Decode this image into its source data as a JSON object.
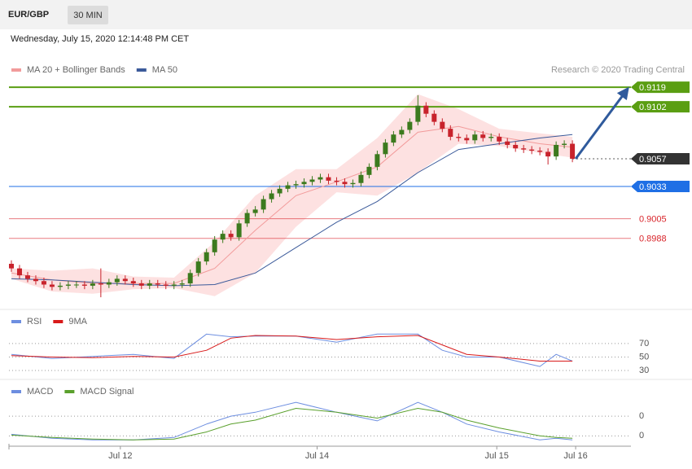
{
  "header": {
    "symbol": "EUR/GBP",
    "interval": "30 MIN",
    "timestamp": "Wednesday, July 15, 2020 12:14:48 PM CET",
    "credit": "Research © 2020 Trading Central"
  },
  "chart_data": [
    {
      "type": "candlestick",
      "xlim": [
        -0.3,
        76.2
      ],
      "ylim": [
        0.893,
        0.9124
      ],
      "x": [
        0,
        1,
        2,
        3,
        4,
        5,
        6,
        7,
        8,
        9,
        10,
        11,
        12,
        13,
        14,
        15,
        16,
        17,
        18,
        19,
        20,
        21,
        22,
        23,
        24,
        25,
        26,
        27,
        28,
        29,
        30,
        31,
        32,
        33,
        34,
        35,
        36,
        37,
        38,
        39,
        40,
        41,
        42,
        43,
        44,
        45,
        46,
        47,
        48,
        49,
        50,
        51,
        52,
        53,
        54,
        55,
        56,
        57,
        58,
        59,
        60,
        61,
        62,
        63,
        64,
        65,
        66,
        67,
        68,
        69
      ],
      "open": [
        0.8966,
        0.8962,
        0.8956,
        0.8953,
        0.8951,
        0.8948,
        0.8946,
        0.8947,
        0.8948,
        0.8948,
        0.8947,
        0.8949,
        0.8948,
        0.895,
        0.8953,
        0.8951,
        0.8949,
        0.8947,
        0.8949,
        0.8948,
        0.8947,
        0.8948,
        0.8949,
        0.8958,
        0.8968,
        0.8976,
        0.8987,
        0.8992,
        0.8989,
        0.9001,
        0.901,
        0.9013,
        0.9022,
        0.9027,
        0.9031,
        0.9034,
        0.9035,
        0.9037,
        0.9039,
        0.9041,
        0.9038,
        0.9037,
        0.9035,
        0.9036,
        0.9043,
        0.905,
        0.9061,
        0.9071,
        0.9078,
        0.9082,
        0.9089,
        0.9103,
        0.9096,
        0.9089,
        0.9083,
        0.9076,
        0.9075,
        0.9073,
        0.9078,
        0.9075,
        0.9076,
        0.9072,
        0.9069,
        0.9066,
        0.9065,
        0.9064,
        0.9063,
        0.9059,
        0.9069,
        0.907
      ],
      "high": [
        0.8969,
        0.8965,
        0.8959,
        0.8956,
        0.8954,
        0.8951,
        0.895,
        0.8951,
        0.8951,
        0.8951,
        0.8952,
        0.8962,
        0.8953,
        0.8956,
        0.8956,
        0.8954,
        0.8952,
        0.8952,
        0.8952,
        0.8951,
        0.8951,
        0.8952,
        0.8961,
        0.8971,
        0.8979,
        0.899,
        0.8995,
        0.8995,
        0.9004,
        0.9013,
        0.9016,
        0.9025,
        0.903,
        0.9034,
        0.9037,
        0.9038,
        0.904,
        0.9042,
        0.9044,
        0.9044,
        0.9041,
        0.904,
        0.9039,
        0.9046,
        0.9053,
        0.9064,
        0.9074,
        0.9081,
        0.9085,
        0.9092,
        0.9112,
        0.9106,
        0.9099,
        0.9092,
        0.9086,
        0.9079,
        0.9078,
        0.9081,
        0.9081,
        0.9079,
        0.9079,
        0.9075,
        0.9072,
        0.9069,
        0.9068,
        0.9067,
        0.9066,
        0.9072,
        0.9073,
        0.9073
      ],
      "low": [
        0.8959,
        0.8953,
        0.895,
        0.8948,
        0.8945,
        0.8943,
        0.8943,
        0.8944,
        0.8945,
        0.8944,
        0.8944,
        0.8937,
        0.8945,
        0.8947,
        0.8948,
        0.8946,
        0.8944,
        0.8944,
        0.8945,
        0.8944,
        0.8944,
        0.8945,
        0.8946,
        0.8955,
        0.8965,
        0.8973,
        0.8984,
        0.8986,
        0.8986,
        0.8998,
        0.9007,
        0.901,
        0.9019,
        0.9024,
        0.9028,
        0.9031,
        0.9032,
        0.9034,
        0.9036,
        0.9035,
        0.9034,
        0.9032,
        0.9032,
        0.9033,
        0.904,
        0.9047,
        0.9058,
        0.9068,
        0.9075,
        0.9079,
        0.9086,
        0.9093,
        0.9086,
        0.908,
        0.9073,
        0.9072,
        0.907,
        0.907,
        0.9072,
        0.9072,
        0.9069,
        0.9066,
        0.9063,
        0.9062,
        0.9061,
        0.906,
        0.9052,
        0.9056,
        0.9066,
        0.9054
      ],
      "close": [
        0.8962,
        0.8956,
        0.8953,
        0.8951,
        0.8948,
        0.8946,
        0.8947,
        0.8948,
        0.8948,
        0.8947,
        0.8949,
        0.8948,
        0.895,
        0.8953,
        0.8951,
        0.8949,
        0.8947,
        0.8949,
        0.8948,
        0.8947,
        0.8948,
        0.8949,
        0.8958,
        0.8968,
        0.8976,
        0.8987,
        0.8992,
        0.8989,
        0.9001,
        0.901,
        0.9013,
        0.9022,
        0.9027,
        0.9031,
        0.9034,
        0.9035,
        0.9037,
        0.9039,
        0.9041,
        0.9038,
        0.9037,
        0.9035,
        0.9036,
        0.9043,
        0.905,
        0.9061,
        0.9071,
        0.9078,
        0.9082,
        0.9089,
        0.9103,
        0.9096,
        0.9089,
        0.9083,
        0.9076,
        0.9075,
        0.9073,
        0.9078,
        0.9075,
        0.9076,
        0.9072,
        0.9069,
        0.9066,
        0.9065,
        0.9064,
        0.9063,
        0.9059,
        0.9069,
        0.907,
        0.9057
      ],
      "up_color": "#3c7a1e",
      "down_color": "#c8232c",
      "series": [
        {
          "name": "MA 20 + Bollinger Bands",
          "color": "#f29b9b",
          "band_color": "#fdd9d9",
          "x": [
            0,
            5,
            10,
            15,
            20,
            25,
            30,
            35,
            40,
            45,
            50,
            55,
            60,
            65,
            69
          ],
          "values": [
            0.8958,
            0.8952,
            0.8949,
            0.8949,
            0.8949,
            0.8962,
            0.8995,
            0.9025,
            0.9037,
            0.905,
            0.908,
            0.9085,
            0.9076,
            0.907,
            0.9067
          ],
          "upper": [
            0.8962,
            0.896,
            0.8962,
            0.8955,
            0.8954,
            0.8985,
            0.9025,
            0.9048,
            0.9048,
            0.9075,
            0.9113,
            0.91,
            0.9083,
            0.9079,
            0.9076
          ],
          "lower": [
            0.8953,
            0.8942,
            0.894,
            0.8944,
            0.8945,
            0.8938,
            0.8958,
            0.8998,
            0.9028,
            0.9025,
            0.9045,
            0.907,
            0.9068,
            0.9062,
            0.9058
          ]
        },
        {
          "name": "MA 50",
          "color": "#3b5a9a",
          "x": [
            0,
            5,
            10,
            15,
            20,
            25,
            30,
            35,
            40,
            45,
            50,
            55,
            60,
            65,
            69
          ],
          "values": [
            0.8953,
            0.8952,
            0.895,
            0.8948,
            0.8947,
            0.8948,
            0.8958,
            0.898,
            0.9002,
            0.902,
            0.9045,
            0.9065,
            0.907,
            0.9075,
            0.9078
          ]
        }
      ],
      "levels": [
        {
          "value": 0.9119,
          "color": "#5a9e12",
          "style": "box"
        },
        {
          "value": 0.9102,
          "color": "#5a9e12",
          "style": "box"
        },
        {
          "value": 0.9057,
          "color": "#333333",
          "style": "dotted-box"
        },
        {
          "value": 0.9033,
          "color": "#1f6fe5",
          "style": "box"
        },
        {
          "value": 0.9005,
          "color": "#d9252b",
          "style": "plain"
        },
        {
          "value": 0.8988,
          "color": "#d9252b",
          "style": "plain"
        }
      ],
      "arrow_color": "#2f5a9c"
    },
    {
      "type": "line",
      "xlim": [
        -0.3,
        76.2
      ],
      "ylim": [
        18,
        117
      ],
      "yticks": [
        30,
        50,
        70
      ],
      "series": [
        {
          "name": "RSI",
          "color": "#6d8ee0",
          "x": [
            0,
            5,
            10,
            15,
            20,
            24,
            27,
            30,
            35,
            40,
            45,
            50,
            53,
            56,
            60,
            65,
            67,
            69
          ],
          "values": [
            54,
            48,
            51,
            54,
            48,
            84,
            80,
            81,
            81,
            72,
            84,
            84,
            60,
            50,
            50,
            36,
            54,
            44
          ]
        },
        {
          "name": "9MA",
          "color": "#d81a1a",
          "x": [
            0,
            5,
            10,
            15,
            20,
            24,
            27,
            30,
            35,
            40,
            45,
            50,
            53,
            56,
            60,
            65,
            67,
            69
          ],
          "values": [
            52,
            50,
            49,
            51,
            50,
            60,
            78,
            82,
            81,
            76,
            80,
            82,
            68,
            54,
            50,
            44,
            44,
            44
          ]
        }
      ]
    },
    {
      "type": "line",
      "xlim": [
        -0.3,
        76.2
      ],
      "ylim": [
        -0.0002,
        0.00135
      ],
      "yticks": [
        {
          "value": 0.0005,
          "label": "0"
        },
        {
          "value": 0,
          "label": "0"
        }
      ],
      "xticks": [
        {
          "value": 13.4,
          "label": "Jul 12"
        },
        {
          "value": 37.6,
          "label": "Jul 14"
        },
        {
          "value": 59.7,
          "label": "Jul 15"
        },
        {
          "value": 69.4,
          "label": "Jul 16"
        }
      ],
      "series": [
        {
          "name": "MACD",
          "color": "#6d8ee0",
          "x": [
            0,
            5,
            10,
            15,
            20,
            24,
            27,
            30,
            35,
            40,
            45,
            50,
            53,
            56,
            60,
            65,
            67,
            69
          ],
          "values": [
            4e-05,
            -6e-05,
            -0.0001,
            -0.0001,
            -4e-05,
            0.0003,
            0.0005,
            0.0006,
            0.00085,
            0.0006,
            0.00038,
            0.00085,
            0.0006,
            0.0003,
            0.0001,
            -0.0001,
            -6e-05,
            -0.0001
          ]
        },
        {
          "name": "MACD Signal",
          "color": "#5aa02c",
          "x": [
            0,
            5,
            10,
            15,
            20,
            24,
            27,
            30,
            35,
            40,
            45,
            50,
            53,
            56,
            60,
            65,
            67,
            69
          ],
          "values": [
            2e-05,
            -4e-05,
            -8e-05,
            -0.0001,
            -8e-05,
            0.0001,
            0.0003,
            0.0004,
            0.0007,
            0.0006,
            0.00045,
            0.0007,
            0.0006,
            0.0004,
            0.0002,
            0,
            -4e-05,
            -6e-05
          ]
        }
      ]
    }
  ]
}
